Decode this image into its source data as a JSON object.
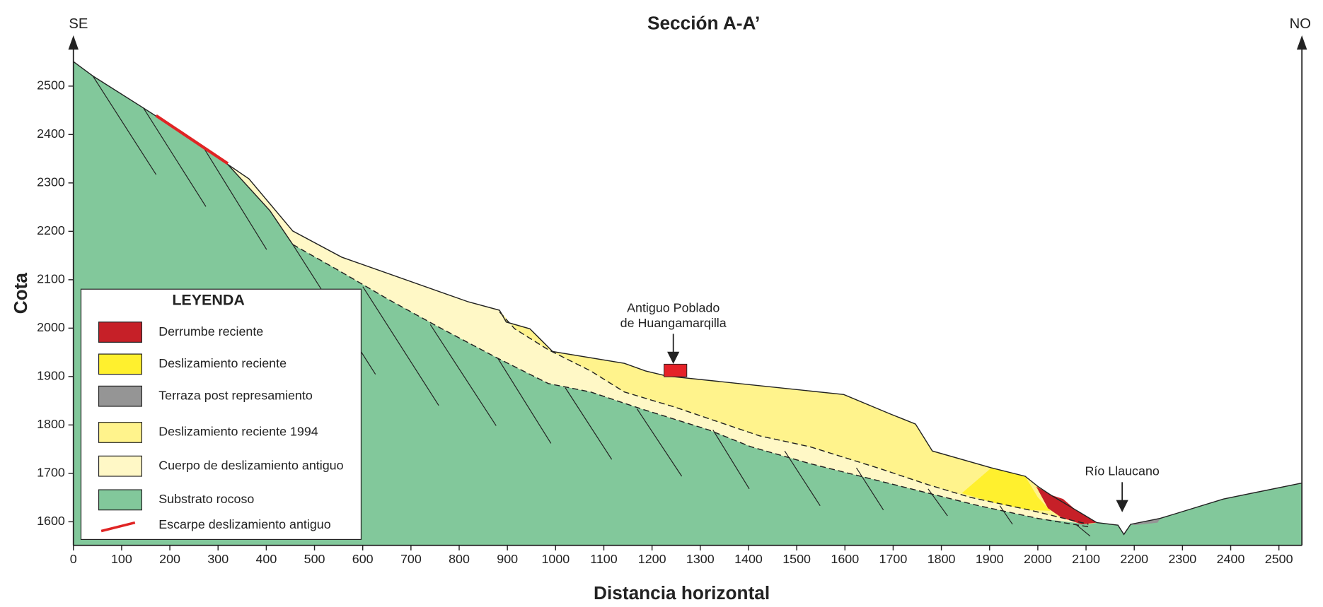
{
  "title": "Sección A-A’",
  "left_label": "SE",
  "right_label": "NO",
  "y_axis_label": "Cota",
  "x_axis_label": "Distancia horizontal",
  "yticks": [
    1600,
    1700,
    1800,
    1900,
    2000,
    2100,
    2200,
    2300,
    2400,
    2500
  ],
  "xticks": [
    0,
    100,
    200,
    300,
    400,
    500,
    600,
    700,
    800,
    900,
    1000,
    1100,
    1200,
    1300,
    1400,
    1500,
    1600,
    1700,
    1800,
    1900,
    2000,
    2100,
    2200,
    2300,
    2400,
    2500
  ],
  "annotations": [
    "Antiguo Poblado",
    "de Huangamarqilla",
    "Río Llaucano"
  ],
  "legend": {
    "title": "LEYENDA",
    "items": [
      {
        "name": "Derrumbe reciente",
        "color": "#c62028"
      },
      {
        "name": "Deslizamiento reciente",
        "color": "#fff02e"
      },
      {
        "name": "Terraza post represamiento",
        "color": "#959595"
      },
      {
        "name": "Deslizamiento reciente 1994",
        "color": "#fff38c"
      },
      {
        "name": "Cuerpo de deslizamiento antiguo",
        "color": "#fff8c6"
      },
      {
        "name": "Substrato rocoso",
        "color": "#82c89b"
      },
      {
        "name": "Escarpe deslizamiento antiguo",
        "color": "#e02424"
      }
    ]
  }
}
